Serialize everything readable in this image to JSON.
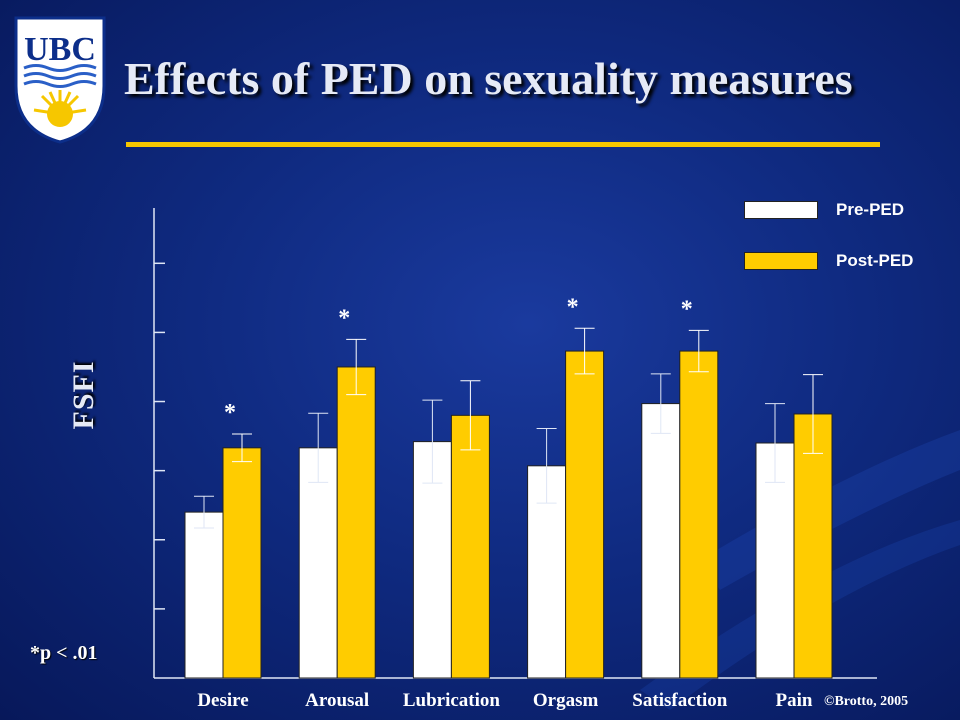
{
  "slide": {
    "title": "Effects of PED on sexuality measures",
    "footnote": "*p < .01",
    "copyright": "©Brotto, 2005"
  },
  "logo": {
    "text": "UBC",
    "colors": {
      "shield": "#0c2e8a",
      "text": "#0c2e8a",
      "sun": "#f6c700",
      "waves": "#2a5fc7"
    }
  },
  "colors": {
    "pre": "#ffffff",
    "post": "#ffcc00",
    "accent_rule": "#f6c700",
    "background": "#0f2a80"
  },
  "chart_data": {
    "type": "bar",
    "title": "",
    "xlabel": "",
    "ylabel": "FSFI",
    "categories": [
      "Desire",
      "Arousal",
      "Lubrication",
      "Orgasm",
      "Satisfaction",
      "Pain"
    ],
    "series": [
      {
        "name": "Pre-PED",
        "color": "#ffffff",
        "values": [
          2.4,
          3.33,
          3.42,
          3.07,
          3.97,
          3.4
        ],
        "error": [
          0.23,
          0.5,
          0.6,
          0.54,
          0.43,
          0.57
        ]
      },
      {
        "name": "Post-PED",
        "color": "#ffcc00",
        "values": [
          3.33,
          4.5,
          3.8,
          4.73,
          4.73,
          3.82
        ],
        "error": [
          0.2,
          0.4,
          0.5,
          0.33,
          0.3,
          0.57
        ]
      }
    ],
    "significant": [
      true,
      true,
      false,
      true,
      true,
      false
    ],
    "significance_marker": "*",
    "ylim": [
      0,
      6.8
    ],
    "yticks": [
      1,
      2,
      3,
      4,
      5,
      6
    ],
    "ytick_labels_shown": false,
    "legend_position": "top-right"
  }
}
